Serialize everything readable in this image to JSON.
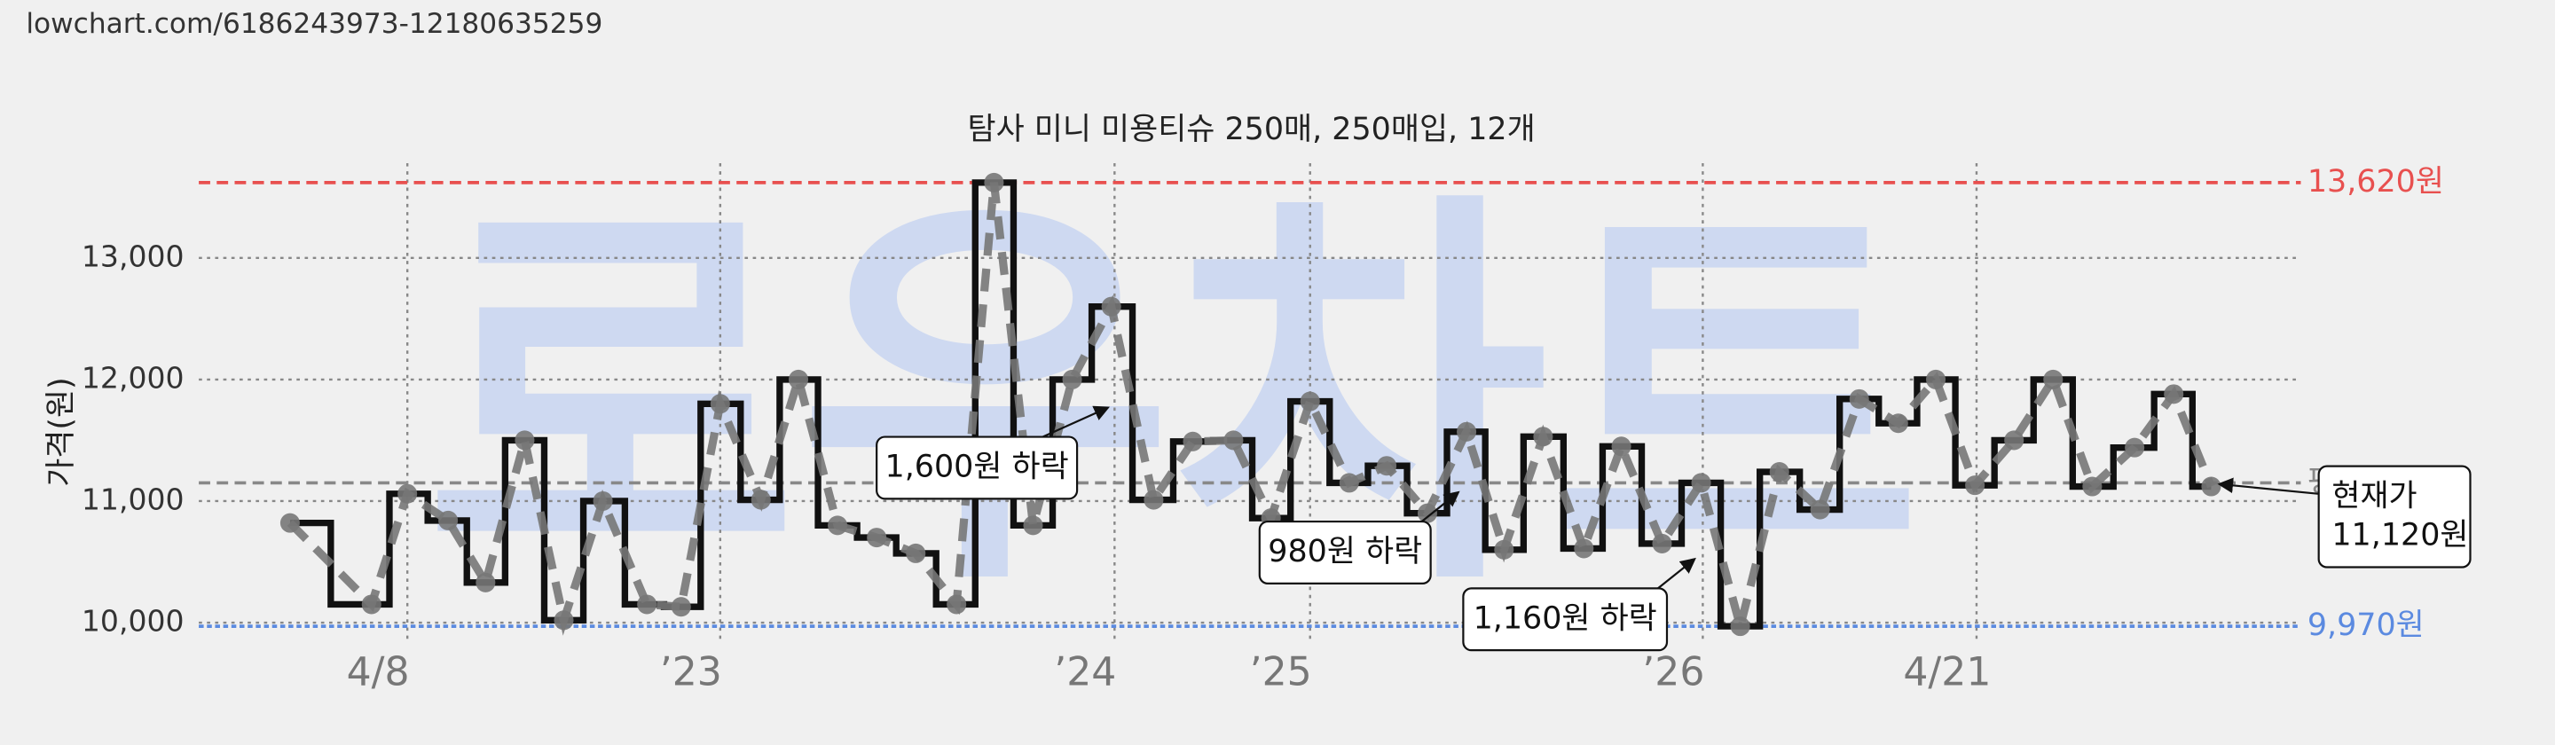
{
  "url": "lowchart.com/6186243973-12180635259",
  "chart_data": {
    "type": "step",
    "title": "탐사 미니 미용티슈 250매, 250매입, 12개",
    "watermark": "로우차트",
    "y_label": "가격(원)",
    "ylim": [
      9880,
      13820
    ],
    "yticks": [
      {
        "value": 10000,
        "label": "10,000"
      },
      {
        "value": 11000,
        "label": "11,000"
      },
      {
        "value": 12000,
        "label": "12,000"
      },
      {
        "value": 13000,
        "label": "13,000"
      }
    ],
    "xlim": [
      122,
      1410
    ],
    "xticks": [
      {
        "value": 250,
        "label": "4/8"
      },
      {
        "value": 442,
        "label": "’23"
      },
      {
        "value": 684,
        "label": "’24"
      },
      {
        "value": 804,
        "label": "’25"
      },
      {
        "value": 1045,
        "label": "’26"
      },
      {
        "value": 1213,
        "label": "4/21"
      }
    ],
    "grid": true,
    "step_color": "#111111",
    "dash_color": "#777777",
    "x": [
      178,
      228,
      250,
      275,
      298,
      322,
      346,
      370,
      397,
      418,
      442,
      467,
      490,
      514,
      538,
      562,
      587,
      610,
      634,
      658,
      682,
      708,
      732,
      757,
      780,
      804,
      828,
      851,
      876,
      900,
      923,
      947,
      972,
      995,
      1020,
      1044,
      1068,
      1092,
      1117,
      1141,
      1165,
      1188,
      1212,
      1236,
      1260,
      1284,
      1310,
      1334,
      1357
    ],
    "values": [
      10820,
      10150,
      11060,
      10840,
      10330,
      11500,
      10020,
      11000,
      10150,
      10130,
      11800,
      11010,
      12000,
      10800,
      10700,
      10570,
      10150,
      13620,
      10800,
      12000,
      12600,
      11010,
      11490,
      11500,
      10860,
      11820,
      11150,
      11290,
      10900,
      11570,
      10600,
      11530,
      10610,
      11450,
      10650,
      11150,
      9970,
      11240,
      10930,
      11840,
      11640,
      12000,
      11130,
      11500,
      12000,
      11120,
      11440,
      11880,
      11120
    ],
    "reference_lines": [
      {
        "value": 13620,
        "label": "13,620원",
        "color": "#e8504f"
      },
      {
        "value": 11150,
        "label": "평균",
        "color": "#888888"
      },
      {
        "value": 9970,
        "label": "9,970원",
        "color": "#5b8ae0"
      }
    ],
    "annotations": [
      {
        "lines": [
          "1,600원 하락"
        ]
      },
      {
        "lines": [
          "980원 하락"
        ]
      },
      {
        "lines": [
          "1,160원 하락"
        ]
      },
      {
        "lines": [
          "현재가",
          "11,120원"
        ]
      }
    ]
  }
}
